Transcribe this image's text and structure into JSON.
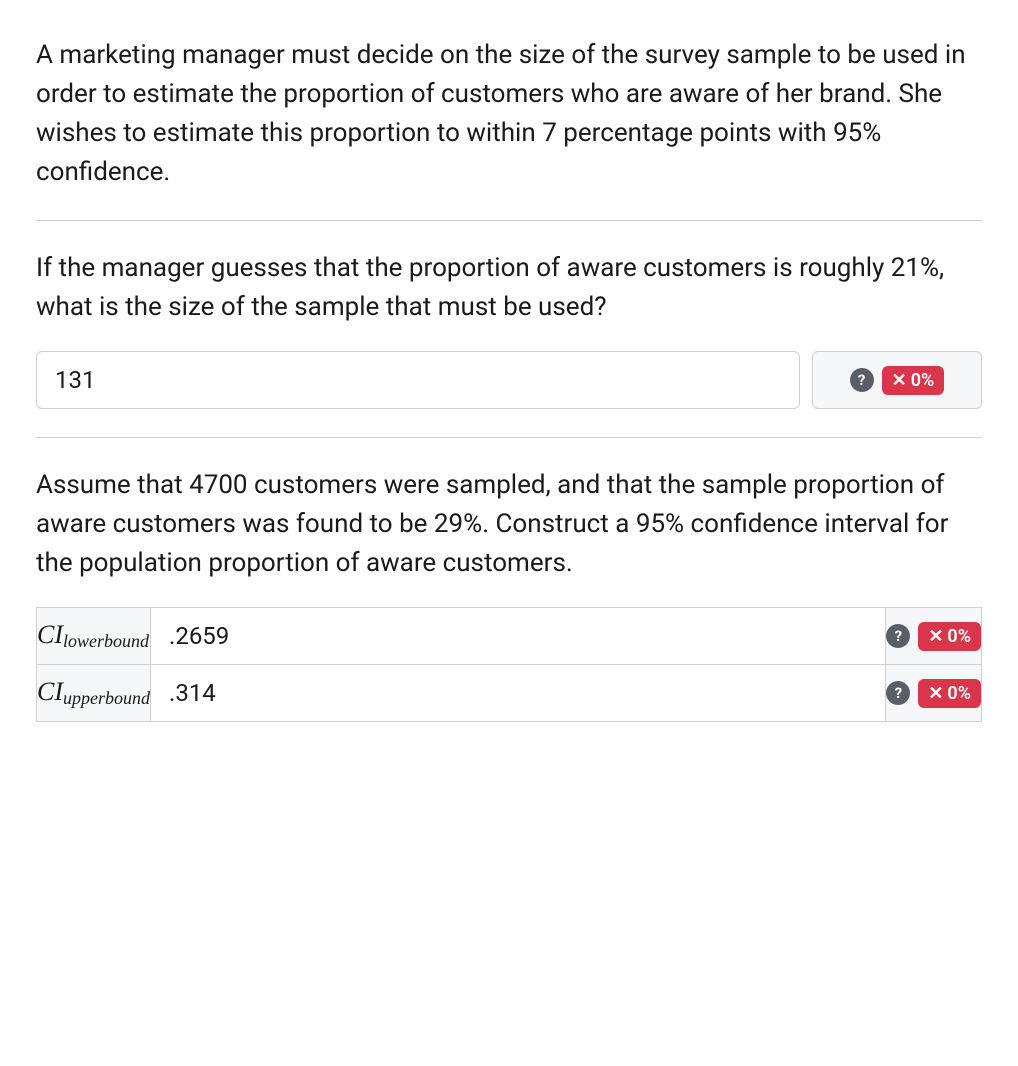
{
  "intro_text": "A marketing manager must decide on the size of the survey sample to be used in order to estimate the proportion of customers who are aware of her brand. She wishes to estimate this proportion to within 7 percentage points with 95% confidence.",
  "question1": {
    "prompt": "If the manager guesses that the proportion of aware customers is roughly 21%, what is the size of the sample that must be used?",
    "answer_value": "131",
    "score_text": "0%",
    "help_symbol": "?"
  },
  "question2": {
    "prompt": "Assume that 4700 customers were sampled, and that the sample proportion of aware customers was found to be 29%. Construct a 95% confidence interval for the population proportion of aware customers.",
    "rows": [
      {
        "label_main": "CI",
        "label_sub": "lowerbound",
        "value": ".2659",
        "score_text": "0%",
        "help_symbol": "?"
      },
      {
        "label_main": "CI",
        "label_sub": "upperbound",
        "value": ".314",
        "score_text": "0%",
        "help_symbol": "?"
      }
    ]
  },
  "colors": {
    "badge_bg": "#d9364c",
    "badge_fg": "#ffffff",
    "help_bg": "#5a5f66",
    "border": "#d0d0d0",
    "panel_bg": "#f6f7f8"
  }
}
